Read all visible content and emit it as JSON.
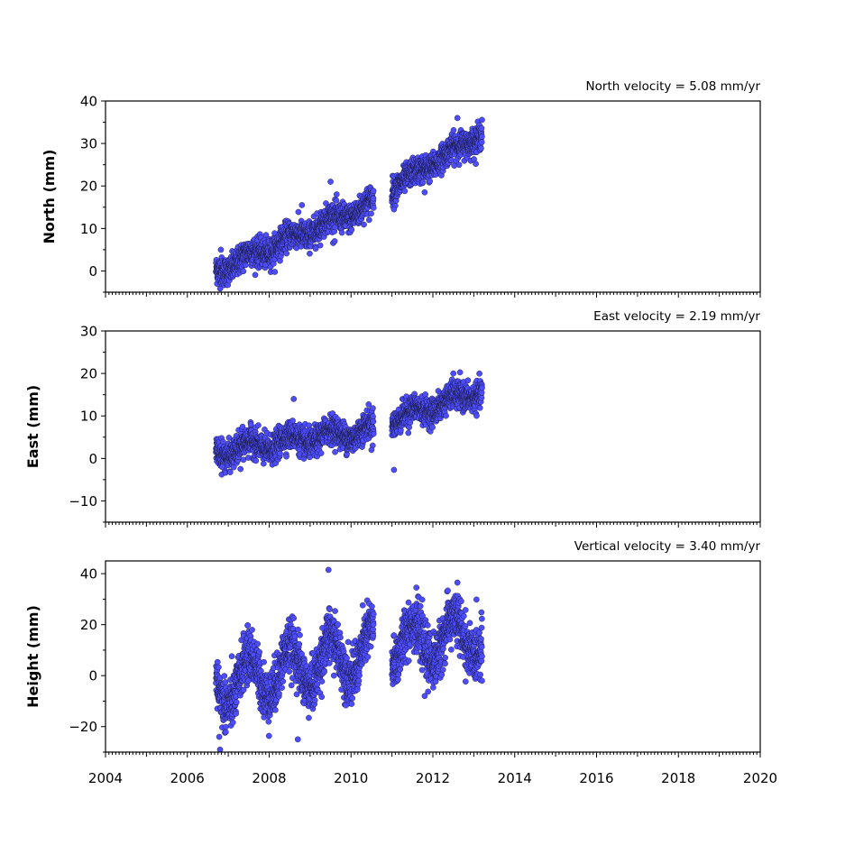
{
  "chart_data": [
    {
      "type": "scatter",
      "velocity_label": "North velocity = 5.08 mm/yr",
      "ylabel": "North (mm)",
      "xlim": [
        2004,
        2020
      ],
      "ylim": [
        -5,
        40
      ],
      "yticks": [
        0,
        10,
        20,
        30,
        40
      ],
      "ytick_labels": [
        "0",
        "10",
        "20",
        "30",
        "40"
      ],
      "marker_color": "#4d4dff",
      "segments": [
        {
          "x_start": 2006.7,
          "x_end": 2010.55,
          "y_start": 0.0,
          "y_end": 16.0,
          "noise": 1.6,
          "seasonal": 1.2,
          "outliers": [
            [
              2006.82,
              5.0
            ],
            [
              2009.5,
              21.0
            ],
            [
              2008.8,
              15.5
            ],
            [
              2009.6,
              7.0
            ]
          ]
        },
        {
          "x_start": 2011.0,
          "x_end": 2013.2,
          "y_start": 19.5,
          "y_end": 32.5,
          "noise": 1.5,
          "seasonal": 0.8,
          "outliers": [
            [
              2011.05,
              14.5
            ],
            [
              2012.6,
              36.0
            ],
            [
              2011.8,
              18.5
            ]
          ]
        }
      ]
    },
    {
      "type": "scatter",
      "velocity_label": "East velocity = 2.19 mm/yr",
      "ylabel": "East (mm)",
      "xlim": [
        2004,
        2020
      ],
      "ylim": [
        -15,
        30
      ],
      "yticks": [
        -10,
        0,
        10,
        20,
        30
      ],
      "ytick_labels": [
        "−10",
        "0",
        "10",
        "20",
        "30"
      ],
      "marker_color": "#4d4dff",
      "segments": [
        {
          "x_start": 2006.7,
          "x_end": 2010.55,
          "y_start": 1.5,
          "y_end": 7.0,
          "noise": 1.6,
          "seasonal": 1.5,
          "outliers": [
            [
              2008.6,
              14.0
            ],
            [
              2011.05,
              -2.7
            ],
            [
              2006.85,
              -2.0
            ],
            [
              2007.3,
              -2.5
            ],
            [
              2010.5,
              2.0
            ]
          ]
        },
        {
          "x_start": 2011.0,
          "x_end": 2013.2,
          "y_start": 9.0,
          "y_end": 16.0,
          "noise": 1.5,
          "seasonal": 1.2,
          "outliers": [
            [
              2012.5,
              20.0
            ],
            [
              2011.4,
              6.0
            ]
          ]
        }
      ]
    },
    {
      "type": "scatter",
      "velocity_label": "Vertical velocity = 3.40 mm/yr",
      "ylabel": "Height (mm)",
      "xlim": [
        2004,
        2020
      ],
      "ylim": [
        -30,
        45
      ],
      "yticks": [
        -20,
        0,
        20,
        40
      ],
      "ytick_labels": [
        "−20",
        "0",
        "20",
        "40"
      ],
      "xticks": [
        2004,
        2006,
        2008,
        2010,
        2012,
        2014,
        2016,
        2018,
        2020
      ],
      "xtick_labels": [
        "2004",
        "2006",
        "2008",
        "2010",
        "2012",
        "2014",
        "2016",
        "2018",
        "2020"
      ],
      "marker_color": "#4d4dff",
      "segments": [
        {
          "x_start": 2006.7,
          "x_end": 2010.55,
          "y_start": -4.0,
          "y_end": 10.0,
          "noise": 5.0,
          "seasonal": 9.0,
          "outliers": [
            [
              2009.45,
              41.5
            ],
            [
              2008.7,
              -25.0
            ],
            [
              2006.8,
              -29.0
            ],
            [
              2006.78,
              -24.0
            ]
          ]
        },
        {
          "x_start": 2011.0,
          "x_end": 2013.2,
          "y_start": 12.0,
          "y_end": 16.0,
          "noise": 5.0,
          "seasonal": 8.0,
          "outliers": [
            [
              2012.6,
              36.5
            ],
            [
              2011.8,
              -8.0
            ],
            [
              2013.2,
              -2.0
            ]
          ]
        }
      ]
    }
  ]
}
